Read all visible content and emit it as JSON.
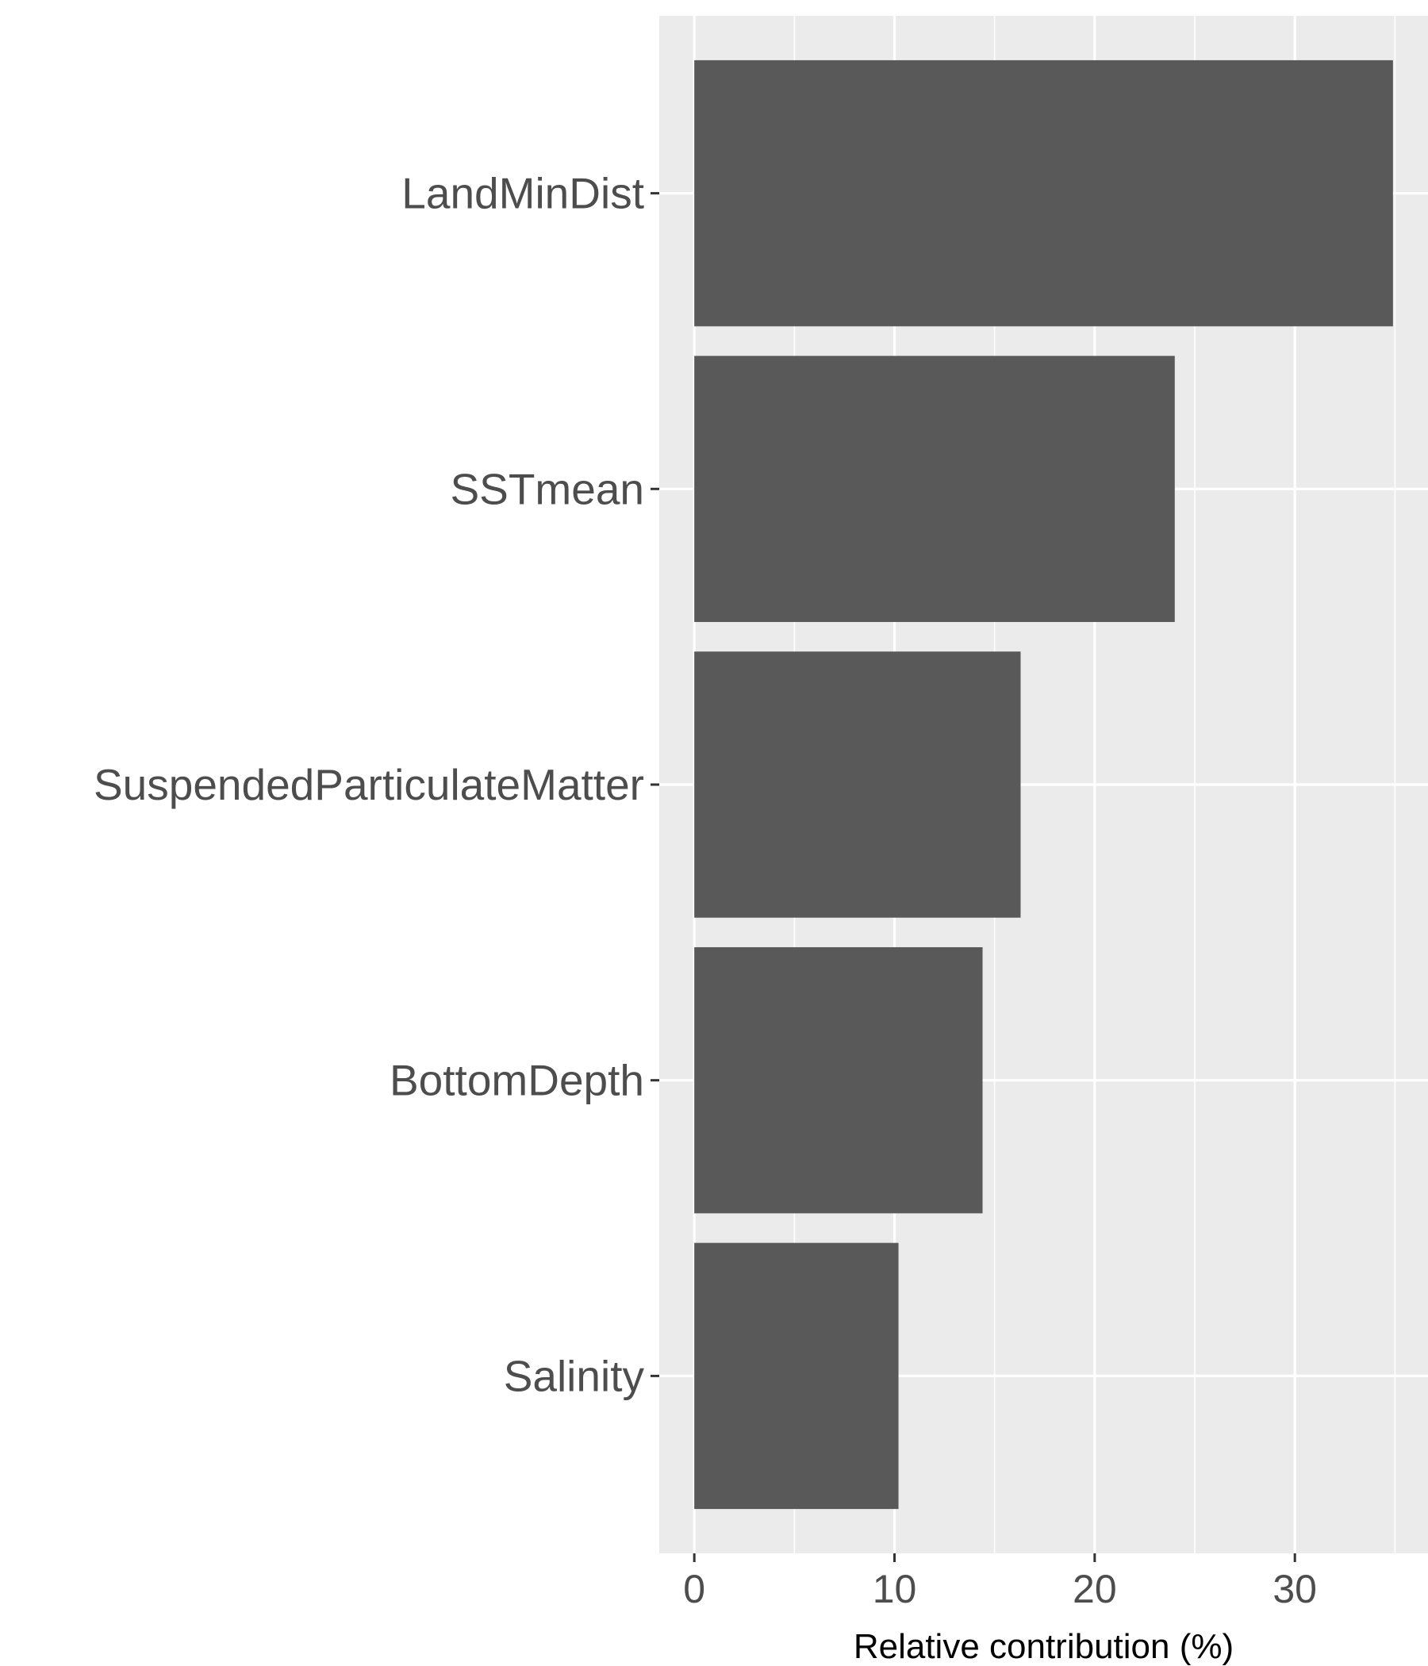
{
  "chart_data": {
    "type": "bar",
    "orientation": "horizontal",
    "categories": [
      "LandMinDist",
      "SSTmean",
      "SuspendedParticulateMatter",
      "BottomDepth",
      "Salinity"
    ],
    "values": [
      34.9,
      24.0,
      16.3,
      14.4,
      10.2
    ],
    "xlabel": "Relative contribution (%)",
    "ylabel": "",
    "title": "",
    "xlim": [
      -1.75,
      36.65
    ],
    "xticks": [
      "0",
      "10",
      "20",
      "30"
    ],
    "xtick_values": [
      0,
      10,
      20,
      30
    ],
    "grid": true,
    "colors": {
      "bar": "#595959",
      "panel": "#ebebeb",
      "grid": "#ffffff",
      "tick": "#333333",
      "tick_label": "#4d4d4d",
      "axis_title": "#000000"
    }
  }
}
